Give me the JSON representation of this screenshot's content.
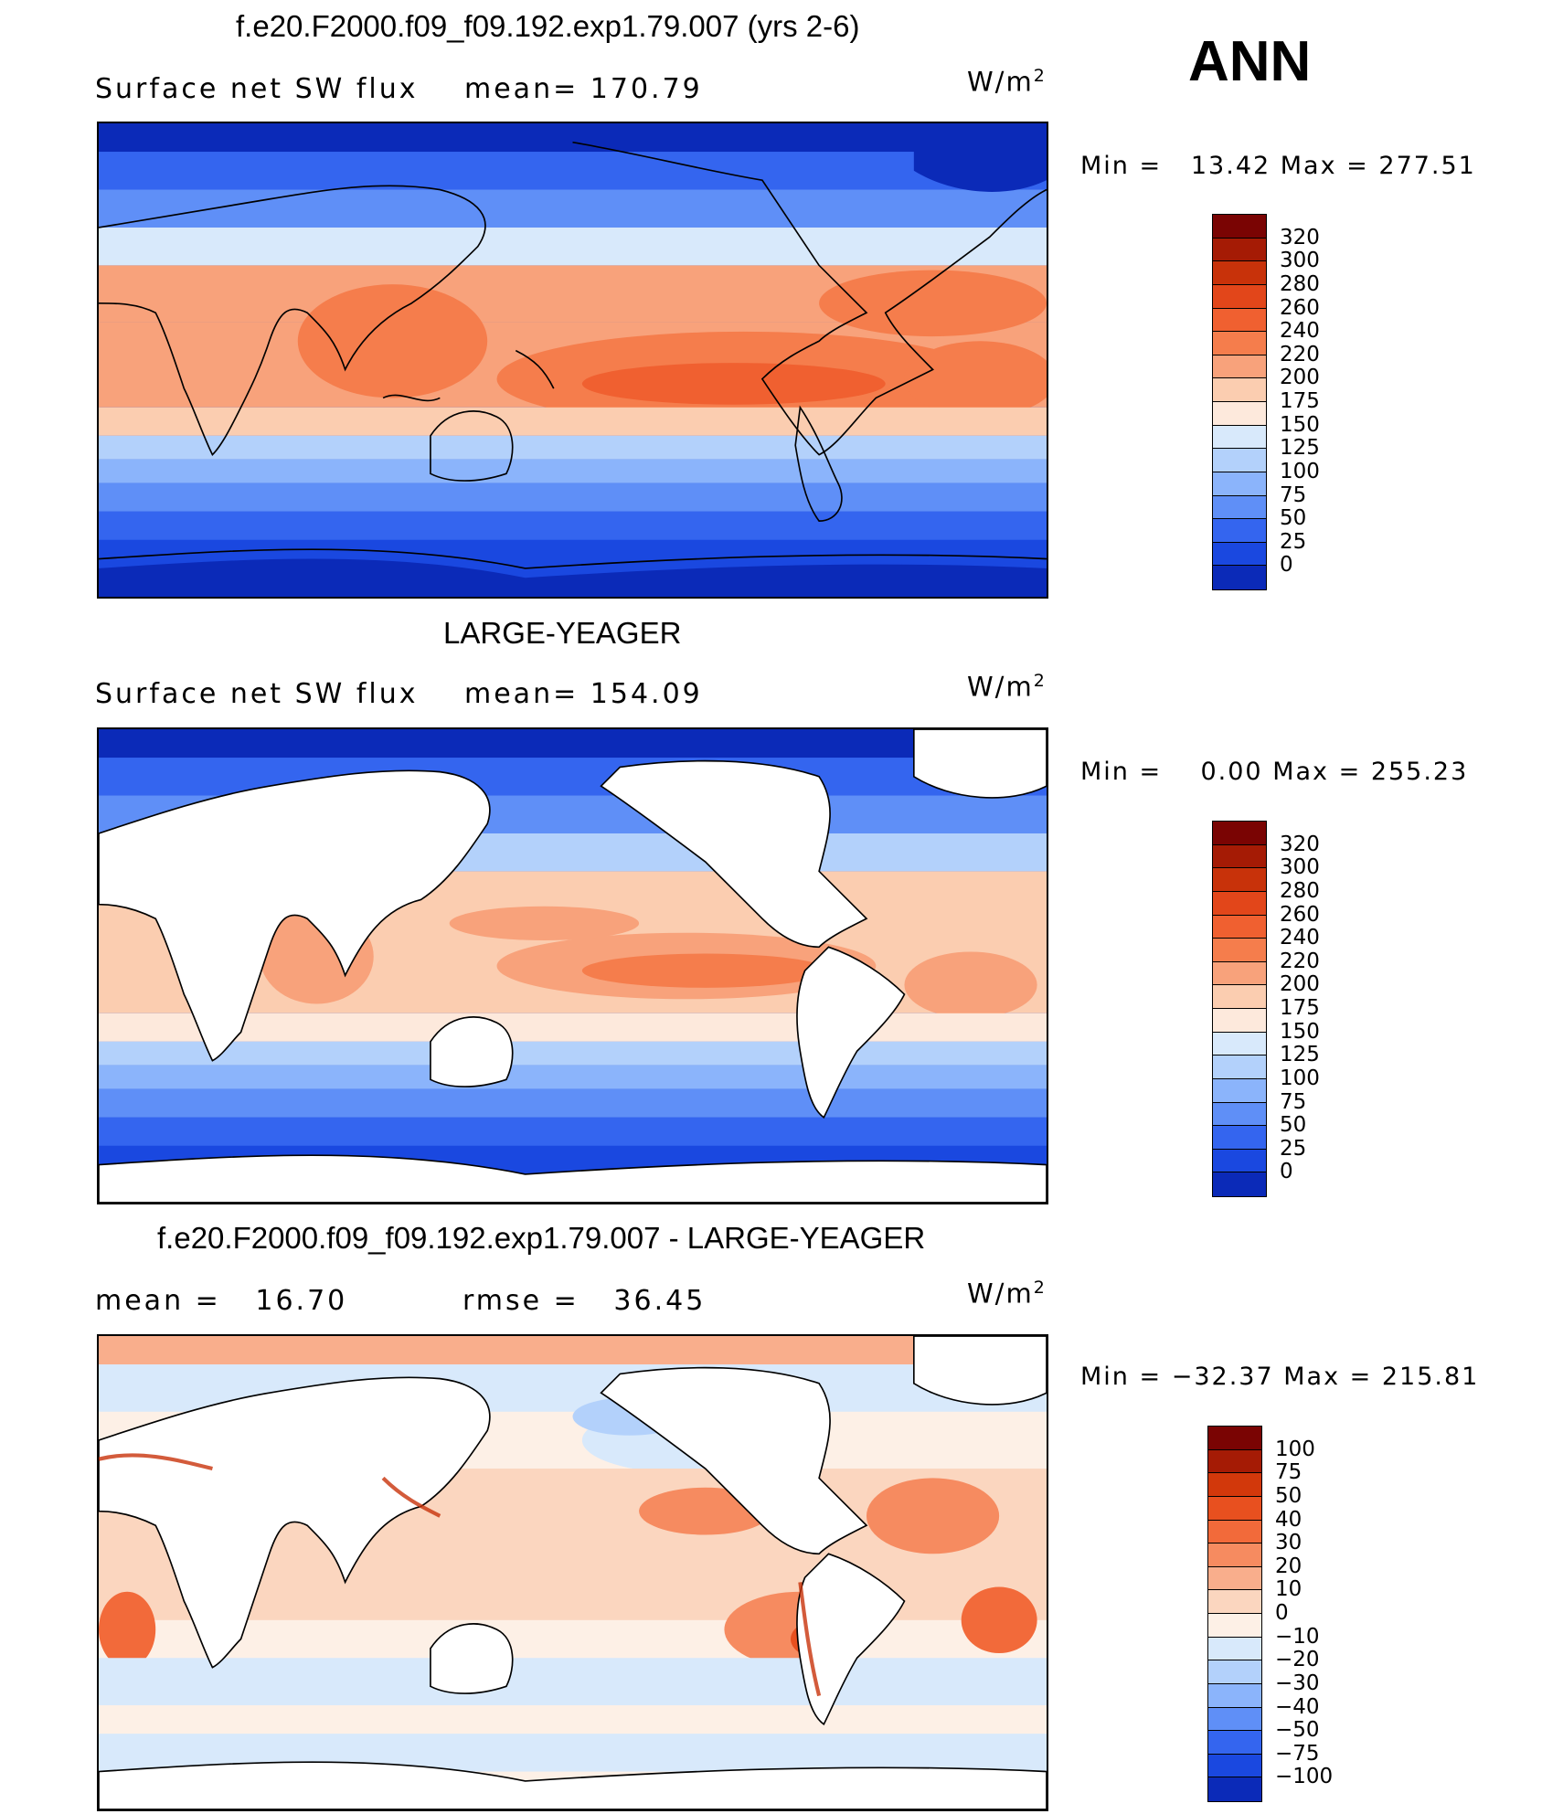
{
  "season": "ANN",
  "panels": [
    {
      "title": "f.e20.F2000.f09_f09.192.exp1.79.007 (yrs 2-6)",
      "left_label": "Surface net SW flux",
      "stat_label": "mean=",
      "stat_value": "170.79",
      "units": "W/m",
      "units_exp": "2",
      "min_label": "Min =",
      "min_value": "13.42",
      "max_label": "Max =",
      "max_value": "277.51",
      "colorbar": {
        "ticks": [
          "320",
          "300",
          "280",
          "260",
          "240",
          "220",
          "200",
          "175",
          "150",
          "125",
          "100",
          "75",
          "50",
          "25",
          "0"
        ],
        "colors": [
          "#7a0403",
          "#a51b05",
          "#c8320a",
          "#e2461a",
          "#f06030",
          "#f57d4c",
          "#f8a27b",
          "#fbcdb0",
          "#fde9dc",
          "#d8e9fb",
          "#b3d1fb",
          "#8bb4fb",
          "#5f8ff7",
          "#3465ef",
          "#1a48e0",
          "#0b2ab8"
        ]
      },
      "masked_land": false
    },
    {
      "title": "LARGE-YEAGER",
      "left_label": "Surface net SW flux",
      "stat_label": "mean=",
      "stat_value": "154.09",
      "units": "W/m",
      "units_exp": "2",
      "min_label": "Min =",
      "min_value": "0.00",
      "max_label": "Max =",
      "max_value": "255.23",
      "colorbar": {
        "ticks": [
          "320",
          "300",
          "280",
          "260",
          "240",
          "220",
          "200",
          "175",
          "150",
          "125",
          "100",
          "75",
          "50",
          "25",
          "0"
        ],
        "colors": [
          "#7a0403",
          "#a51b05",
          "#c8320a",
          "#e2461a",
          "#f06030",
          "#f57d4c",
          "#f8a27b",
          "#fbcdb0",
          "#fde9dc",
          "#d8e9fb",
          "#b3d1fb",
          "#8bb4fb",
          "#5f8ff7",
          "#3465ef",
          "#1a48e0",
          "#0b2ab8"
        ]
      },
      "masked_land": true
    },
    {
      "title": "f.e20.F2000.f09_f09.192.exp1.79.007 - LARGE-YEAGER",
      "left_label": "mean =",
      "left_value": "16.70",
      "stat_label": "rmse =",
      "stat_value": "36.45",
      "units": "W/m",
      "units_exp": "2",
      "min_label": "Min =",
      "min_value": "−32.37",
      "max_label": "Max =",
      "max_value": "215.81",
      "colorbar": {
        "ticks": [
          "100",
          "75",
          "50",
          "40",
          "30",
          "20",
          "10",
          "0",
          "−10",
          "−20",
          "−30",
          "−40",
          "−50",
          "−75",
          "−100"
        ],
        "colors": [
          "#7a0403",
          "#a51b05",
          "#d2380b",
          "#e8501f",
          "#f26a3a",
          "#f68b60",
          "#f9ae8c",
          "#fbd6bf",
          "#fdf0e6",
          "#d8e9fb",
          "#b3d1fb",
          "#8bb4fb",
          "#5f8ff7",
          "#3465ef",
          "#1a48e0",
          "#0b2ab8"
        ]
      },
      "masked_land": true
    }
  ]
}
